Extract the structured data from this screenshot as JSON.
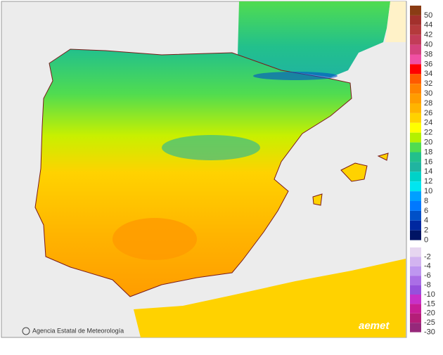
{
  "map": {
    "credit": "Agencia Estatal de Meteorología",
    "logo": "aemet"
  },
  "legend": {
    "warm": [
      {
        "value": 50,
        "color": "#8a3c14"
      },
      {
        "value": 44,
        "color": "#a2302c"
      },
      {
        "value": 42,
        "color": "#b43a3c"
      },
      {
        "value": 40,
        "color": "#c23c58"
      },
      {
        "value": 38,
        "color": "#d4427c"
      },
      {
        "value": 36,
        "color": "#f050a4"
      },
      {
        "value": 34,
        "color": "#ff0000"
      },
      {
        "value": 32,
        "color": "#ff5a00"
      },
      {
        "value": 30,
        "color": "#ff8200"
      },
      {
        "value": 28,
        "color": "#ff9c00"
      },
      {
        "value": 26,
        "color": "#ffb400"
      },
      {
        "value": 24,
        "color": "#ffd200"
      },
      {
        "value": 22,
        "color": "#ffff00"
      },
      {
        "value": 20,
        "color": "#b4f000"
      },
      {
        "value": 18,
        "color": "#50dc50"
      },
      {
        "value": 16,
        "color": "#22c08c"
      },
      {
        "value": 14,
        "color": "#20b4a0"
      },
      {
        "value": 12,
        "color": "#00d2c8"
      },
      {
        "value": 10,
        "color": "#00e6f0"
      },
      {
        "value": 8,
        "color": "#00a0ff"
      },
      {
        "value": 6,
        "color": "#0078ff"
      },
      {
        "value": 4,
        "color": "#0050c8"
      },
      {
        "value": 2,
        "color": "#0028a0"
      },
      {
        "value": 0,
        "color": "#001464"
      }
    ],
    "cold": [
      {
        "value": -2,
        "color": "#e6d6f0"
      },
      {
        "value": -4,
        "color": "#d2b4f0"
      },
      {
        "value": -6,
        "color": "#be96f0"
      },
      {
        "value": -8,
        "color": "#aa6ee6"
      },
      {
        "value": -10,
        "color": "#9650dc"
      },
      {
        "value": -15,
        "color": "#c830c8"
      },
      {
        "value": -20,
        "color": "#c81e96"
      },
      {
        "value": -25,
        "color": "#b41e78"
      },
      {
        "value": -30,
        "color": "#96287a"
      }
    ]
  }
}
